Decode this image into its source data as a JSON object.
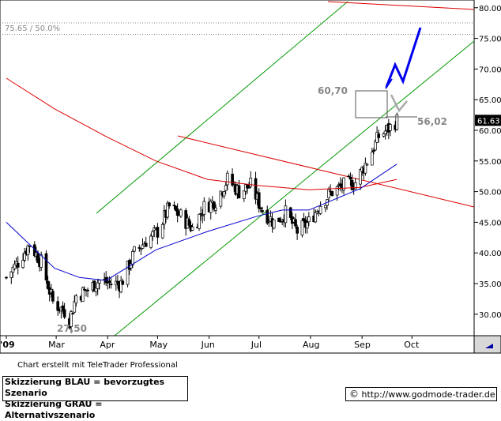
{
  "header_text": "75.65 / 50.0%",
  "footer_note": "Chart erstellt mit TeleTrader Professional",
  "legend": {
    "blue": "Skizzierung BLAU = bevorzugtes Szenario",
    "gray": "Skizzierung GRAU = Alternativszenario"
  },
  "url": {
    "copyright": "©",
    "text": "http://www.godmode-trader.de"
  },
  "colors": {
    "price": "#000000",
    "ma_fast": "#0000cc",
    "ma_slow": "#dd0000",
    "channel": "#009900",
    "resistance": "#dd0000",
    "scenario_blue": "#0000ee",
    "scenario_gray": "#aaaaaa",
    "grid_dotted": "#888888",
    "last_price_bg": "#000000"
  },
  "chart_data": {
    "type": "candlestick",
    "ylim": [
      26.5,
      81
    ],
    "y_ticks": [
      30,
      35,
      40,
      45,
      50,
      55,
      60,
      65,
      70,
      75,
      80
    ],
    "y_tick_labels": [
      "30.00",
      "35.00",
      "40.00",
      "45.00",
      "50.00",
      "55.00",
      "60.00",
      "65.00",
      "70.00",
      "75.00",
      "80.00"
    ],
    "x_tick_labels": [
      "'09",
      "Mar",
      "Apr",
      "May",
      "Jun",
      "Jul",
      "Aug",
      "Sep",
      "Oct"
    ],
    "x_tick_dates": [
      "2009-01-30",
      "2009-03-01",
      "2009-04-01",
      "2009-05-01",
      "2009-06-01",
      "2009-07-01",
      "2009-08-01",
      "2009-09-01",
      "2009-10-01"
    ],
    "last_price_label": "61.63",
    "last_price": 61.63,
    "horizontal_level": 75.65,
    "annotations": [
      {
        "text": "60,70",
        "value": 60.7,
        "date": "2009-09-11"
      },
      {
        "text": "56,02",
        "value": 56.02,
        "date": "2009-09-11"
      },
      {
        "text": "27,50",
        "value": 27.5,
        "date": "2009-03-09"
      }
    ],
    "close_series": {
      "dates": [
        "2009-01-30",
        "2009-02-06",
        "2009-02-13",
        "2009-02-20",
        "2009-02-27",
        "2009-03-06",
        "2009-03-09",
        "2009-03-13",
        "2009-03-20",
        "2009-03-27",
        "2009-04-03",
        "2009-04-09",
        "2009-04-17",
        "2009-04-24",
        "2009-05-01",
        "2009-05-08",
        "2009-05-15",
        "2009-05-22",
        "2009-05-29",
        "2009-06-05",
        "2009-06-12",
        "2009-06-19",
        "2009-06-26",
        "2009-07-03",
        "2009-07-10",
        "2009-07-17",
        "2009-07-24",
        "2009-07-31",
        "2009-08-07",
        "2009-08-14",
        "2009-08-21",
        "2009-08-28",
        "2009-09-04",
        "2009-09-11",
        "2009-09-18",
        "2009-09-22"
      ],
      "values": [
        36,
        38.5,
        41.5,
        38.5,
        32,
        30.5,
        29,
        33,
        34,
        35.5,
        35,
        35,
        40,
        42,
        43.5,
        47.5,
        46,
        44,
        47.5,
        48.5,
        52,
        50,
        51,
        47,
        45,
        46.5,
        43.5,
        45,
        48,
        50,
        51,
        51.5,
        55,
        59,
        60.5,
        61.6
      ]
    },
    "series": [
      {
        "name": "ma_slow",
        "dates": [
          "2009-01-30",
          "2009-02-28",
          "2009-03-31",
          "2009-04-30",
          "2009-05-31",
          "2009-06-30",
          "2009-07-31",
          "2009-08-31",
          "2009-09-22"
        ],
        "values": [
          68.5,
          63.5,
          59,
          55,
          52,
          51,
          50.3,
          50.7,
          52
        ]
      },
      {
        "name": "ma_fast",
        "dates": [
          "2009-01-30",
          "2009-02-28",
          "2009-03-15",
          "2009-03-31",
          "2009-04-15",
          "2009-04-30",
          "2009-05-31",
          "2009-06-30",
          "2009-07-15",
          "2009-07-31",
          "2009-08-31",
          "2009-09-22"
        ],
        "values": [
          45,
          37.5,
          36,
          35.5,
          38,
          40.5,
          43.5,
          46,
          47,
          47,
          50.5,
          54.5
        ]
      }
    ]
  }
}
